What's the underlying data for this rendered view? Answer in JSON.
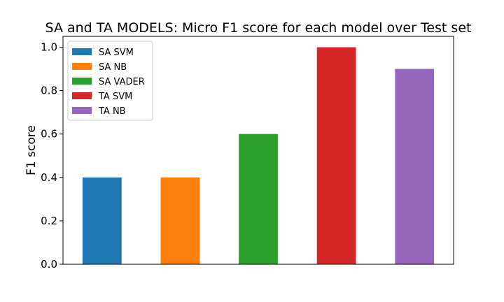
{
  "chart_data": {
    "type": "bar",
    "title": "SA and TA MODELS: Micro F1 score for each model over Test set",
    "xlabel": "",
    "ylabel": "F1 score",
    "ylim": [
      0,
      1.05
    ],
    "yticks": [
      0.0,
      0.2,
      0.4,
      0.6,
      0.8,
      1.0
    ],
    "ytick_labels": [
      "0.0",
      "0.2",
      "0.4",
      "0.6",
      "0.8",
      "1.0"
    ],
    "grid": false,
    "legend_position": "top-left",
    "series": [
      {
        "name": "SA SVM",
        "value": 0.4,
        "color": "#1f77b4"
      },
      {
        "name": "SA NB",
        "value": 0.4,
        "color": "#ff7f0e"
      },
      {
        "name": "SA VADER",
        "value": 0.6,
        "color": "#2ca02c"
      },
      {
        "name": "TA SVM",
        "value": 1.0,
        "color": "#d62728"
      },
      {
        "name": "TA NB",
        "value": 0.9,
        "color": "#9467bd"
      }
    ]
  }
}
